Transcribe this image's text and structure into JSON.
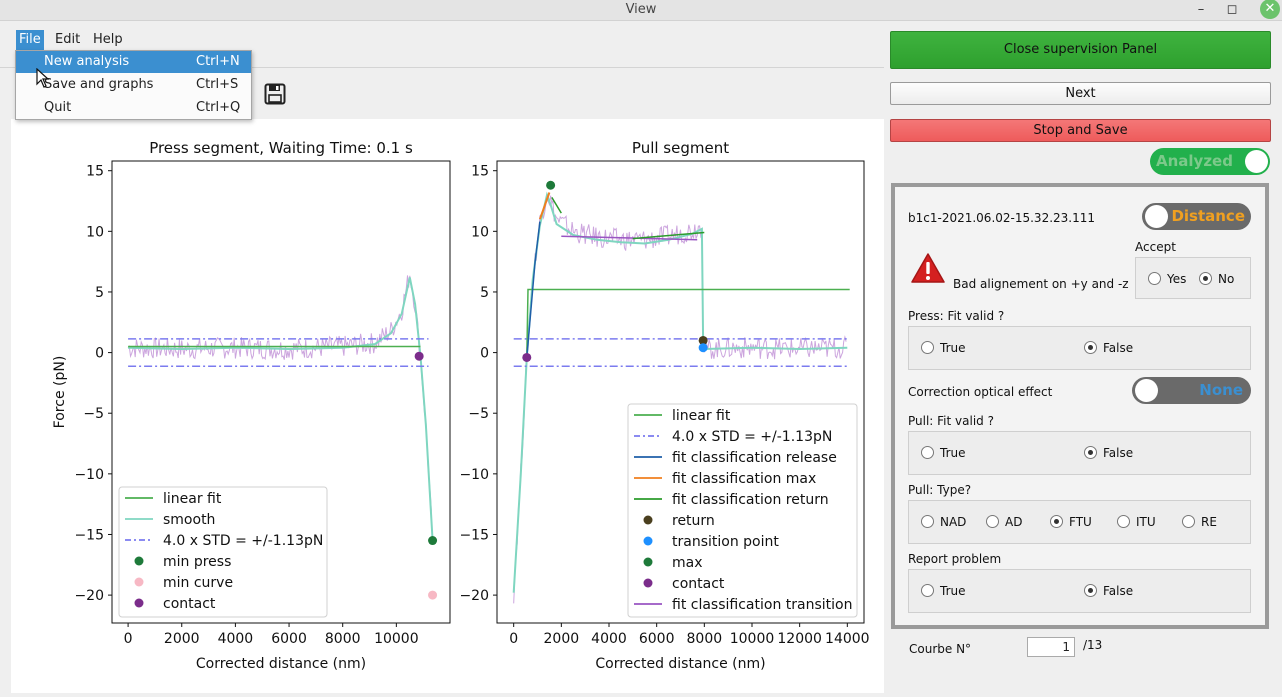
{
  "window": {
    "title": "View"
  },
  "menu": {
    "file": "File",
    "edit": "Edit",
    "help": "Help"
  },
  "file_menu": [
    {
      "label": "New analysis",
      "shortcut": "Ctrl+N"
    },
    {
      "label": "Save and graphs",
      "shortcut": "Ctrl+S"
    },
    {
      "label": "Quit",
      "shortcut": "Ctrl+Q"
    }
  ],
  "buttons": {
    "close_panel": "Close supervision Panel",
    "next": "Next",
    "stop_save": "Stop and Save"
  },
  "toggles": {
    "analyzed": "Analyzed",
    "distance": "Distance",
    "correction": "None"
  },
  "panel": {
    "curve_name": "b1c1-2021.06.02-15.32.23.111",
    "accept_label": "Accept",
    "warning": "Bad alignement on +y and -z",
    "accept_options": [
      "Yes",
      "No"
    ],
    "accept_selected": "No",
    "press_fit_label": "Press: Fit valid ?",
    "correction_label": "Correction optical effect",
    "pull_fit_label": "Pull: Fit valid ?",
    "pull_type_label": "Pull: Type?",
    "report_label": "Report problem",
    "bool_options": [
      "True",
      "False"
    ],
    "press_fit_selected": "False",
    "pull_fit_selected": "False",
    "pull_types": [
      "NAD",
      "AD",
      "FTU",
      "ITU",
      "RE"
    ],
    "pull_type_selected": "FTU",
    "report_selected": "False",
    "curve_number_label": "Courbe N°",
    "curve_number": "1",
    "curve_total": "/13"
  },
  "colors": {
    "accent": "#3b8fd0",
    "green_button": "#35a835",
    "red_button": "#ef6464",
    "toggle_on": "#22b04c",
    "toggle_off": "#6a6a6a",
    "distance_text": "#f0a020"
  },
  "chart_data": [
    {
      "type": "line",
      "title": "Press segment, Waiting Time: 0.1 s",
      "xlabel": "Corrected distance (nm)",
      "ylabel": "Force (pN)",
      "xlim": [
        -600,
        12000
      ],
      "ylim": [
        -22.3,
        15.8
      ],
      "xticks": [
        0,
        2000,
        4000,
        6000,
        8000,
        10000
      ],
      "yticks": [
        -20,
        -15,
        -10,
        -5,
        0,
        5,
        10,
        15
      ],
      "legend_position": "lower-left",
      "legend": [
        {
          "label": "linear fit",
          "kind": "line",
          "color": "#4caf50"
        },
        {
          "label": "smooth",
          "kind": "line",
          "color": "#7fd6c0"
        },
        {
          "label": "4.0 x STD = +/-1.13pN",
          "kind": "dashdot",
          "color": "#7b7bef"
        },
        {
          "label": "min press",
          "kind": "dot",
          "color": "#1e7a3a"
        },
        {
          "label": "min curve",
          "kind": "dot",
          "color": "#f7b8c4"
        },
        {
          "label": "contact",
          "kind": "dot",
          "color": "#7b2d8b"
        }
      ],
      "series": [
        {
          "kind": "noise",
          "color": "#c9a0dc",
          "points": [
            [
              0,
              0.4
            ],
            [
              2000,
              0.3
            ],
            [
              4000,
              0.4
            ],
            [
              6000,
              0.3
            ],
            [
              8000,
              0.5
            ],
            [
              9200,
              0.8
            ],
            [
              9800,
              1.8
            ],
            [
              10200,
              3.5
            ],
            [
              10500,
              6.5
            ],
            [
              10700,
              4.0
            ],
            [
              10900,
              -0.3
            ],
            [
              11100,
              -6.0
            ],
            [
              11350,
              -15.5
            ]
          ]
        },
        {
          "kind": "line",
          "color": "#7fd6c0",
          "width": 2,
          "points": [
            [
              0,
              0.4
            ],
            [
              2000,
              0.3
            ],
            [
              4000,
              0.4
            ],
            [
              6000,
              0.3
            ],
            [
              8000,
              0.4
            ],
            [
              9200,
              0.7
            ],
            [
              9800,
              1.6
            ],
            [
              10200,
              3.2
            ],
            [
              10500,
              6.2
            ],
            [
              10700,
              4.0
            ],
            [
              10900,
              -0.3
            ],
            [
              11100,
              -6.0
            ],
            [
              11350,
              -15.5
            ]
          ]
        },
        {
          "kind": "line",
          "color": "#4caf50",
          "width": 1.5,
          "points": [
            [
              0,
              0.5
            ],
            [
              10900,
              0.5
            ]
          ]
        },
        {
          "kind": "dashdot",
          "color": "#7b7bef",
          "width": 1.5,
          "points": [
            [
              0,
              1.13
            ],
            [
              11200,
              1.13
            ]
          ]
        },
        {
          "kind": "dashdot",
          "color": "#7b7bef",
          "width": 1.5,
          "points": [
            [
              0,
              -1.13
            ],
            [
              11200,
              -1.13
            ]
          ]
        }
      ],
      "markers": [
        {
          "x": 10850,
          "y": -0.3,
          "color": "#7b2d8b"
        },
        {
          "x": 11350,
          "y": -15.5,
          "color": "#1e7a3a"
        },
        {
          "x": 11350,
          "y": -20,
          "color": "#f7b8c4"
        }
      ]
    },
    {
      "type": "line",
      "title": "Pull segment",
      "xlabel": "Corrected distance (nm)",
      "ylabel": "",
      "xlim": [
        -700,
        14700
      ],
      "ylim": [
        -22.3,
        15.8
      ],
      "xticks": [
        0,
        2000,
        4000,
        6000,
        8000,
        10000,
        12000,
        14000
      ],
      "yticks": [
        -20,
        -15,
        -10,
        -5,
        0,
        5,
        10,
        15
      ],
      "legend_position": "lower-right",
      "legend": [
        {
          "label": "linear fit",
          "kind": "line",
          "color": "#4caf50"
        },
        {
          "label": "4.0 x STD = +/-1.13pN",
          "kind": "dashdot",
          "color": "#7b7bef"
        },
        {
          "label": "fit classification release",
          "kind": "line",
          "color": "#1f5fa8"
        },
        {
          "label": "fit classification max",
          "kind": "line",
          "color": "#f07f1e"
        },
        {
          "label": "fit classification return",
          "kind": "line",
          "color": "#2b9b2b"
        },
        {
          "label": "return",
          "kind": "dot",
          "color": "#4a3f1e"
        },
        {
          "label": "transition point",
          "kind": "dot",
          "color": "#1e90ff"
        },
        {
          "label": "max",
          "kind": "dot",
          "color": "#1e7a3a"
        },
        {
          "label": "contact",
          "kind": "dot",
          "color": "#7b2d8b"
        },
        {
          "label": "fit classification transition",
          "kind": "line",
          "color": "#9a55c2"
        }
      ],
      "series": [
        {
          "kind": "noise",
          "color": "#c9a0dc",
          "points": [
            [
              0,
              -19.8
            ],
            [
              300,
              -10
            ],
            [
              550,
              -0.4
            ],
            [
              800,
              6
            ],
            [
              1100,
              10.8
            ],
            [
              1400,
              13.2
            ],
            [
              1550,
              12.5
            ],
            [
              1800,
              11
            ],
            [
              2500,
              10
            ],
            [
              3500,
              9.5
            ],
            [
              4500,
              9.3
            ],
            [
              5500,
              9.3
            ],
            [
              6500,
              9.6
            ],
            [
              7500,
              10.1
            ],
            [
              7900,
              10.5
            ],
            [
              7950,
              1.0
            ],
            [
              8000,
              0.3
            ],
            [
              10000,
              0.4
            ],
            [
              12000,
              0.3
            ],
            [
              14000,
              0.4
            ]
          ]
        },
        {
          "kind": "line",
          "color": "#7fd6c0",
          "width": 2,
          "points": [
            [
              0,
              -19.8
            ],
            [
              300,
              -10
            ],
            [
              550,
              -0.4
            ],
            [
              800,
              6
            ],
            [
              1100,
              10.5
            ],
            [
              1400,
              13
            ],
            [
              1550,
              12.2
            ],
            [
              1800,
              10.6
            ],
            [
              2500,
              9.7
            ],
            [
              3500,
              9.3
            ],
            [
              4500,
              9.1
            ],
            [
              5500,
              9.0
            ],
            [
              6500,
              9.3
            ],
            [
              7500,
              9.8
            ],
            [
              7900,
              10.2
            ],
            [
              7950,
              1.0
            ],
            [
              8000,
              0.3
            ],
            [
              10000,
              0.4
            ],
            [
              12000,
              0.3
            ],
            [
              14000,
              0.4
            ]
          ]
        },
        {
          "kind": "line",
          "color": "#4caf50",
          "width": 1.5,
          "points": [
            [
              550,
              -0.4
            ],
            [
              600,
              5.2
            ],
            [
              14100,
              5.2
            ]
          ]
        },
        {
          "kind": "dashdot",
          "color": "#7b7bef",
          "width": 1.5,
          "points": [
            [
              0,
              1.13
            ],
            [
              14100,
              1.13
            ]
          ]
        },
        {
          "kind": "dashdot",
          "color": "#7b7bef",
          "width": 1.5,
          "points": [
            [
              0,
              -1.13
            ],
            [
              14100,
              -1.13
            ]
          ]
        },
        {
          "kind": "line",
          "color": "#1f5fa8",
          "width": 1.5,
          "points": [
            [
              550,
              -0.4
            ],
            [
              900,
              7.5
            ],
            [
              1100,
              10.8
            ]
          ]
        },
        {
          "kind": "line",
          "color": "#f07f1e",
          "width": 2,
          "points": [
            [
              1100,
              11
            ],
            [
              1500,
              13.2
            ]
          ]
        },
        {
          "kind": "line",
          "color": "#2b9b2b",
          "width": 1.5,
          "points": [
            [
              1600,
              12.8
            ],
            [
              2000,
              11.5
            ]
          ]
        },
        {
          "kind": "line",
          "color": "#9a55c2",
          "width": 1.5,
          "points": [
            [
              2000,
              9.6
            ],
            [
              7700,
              9.3
            ]
          ]
        },
        {
          "kind": "line",
          "color": "#2b9b2b",
          "width": 1.5,
          "points": [
            [
              5000,
              9.4
            ],
            [
              8000,
              9.9
            ]
          ]
        }
      ],
      "markers": [
        {
          "x": 550,
          "y": -0.4,
          "color": "#7b2d8b"
        },
        {
          "x": 1550,
          "y": 13.8,
          "color": "#1e7a3a"
        },
        {
          "x": 7950,
          "y": 1.0,
          "color": "#4a3f1e"
        },
        {
          "x": 7950,
          "y": 0.4,
          "color": "#1e90ff"
        }
      ]
    }
  ]
}
